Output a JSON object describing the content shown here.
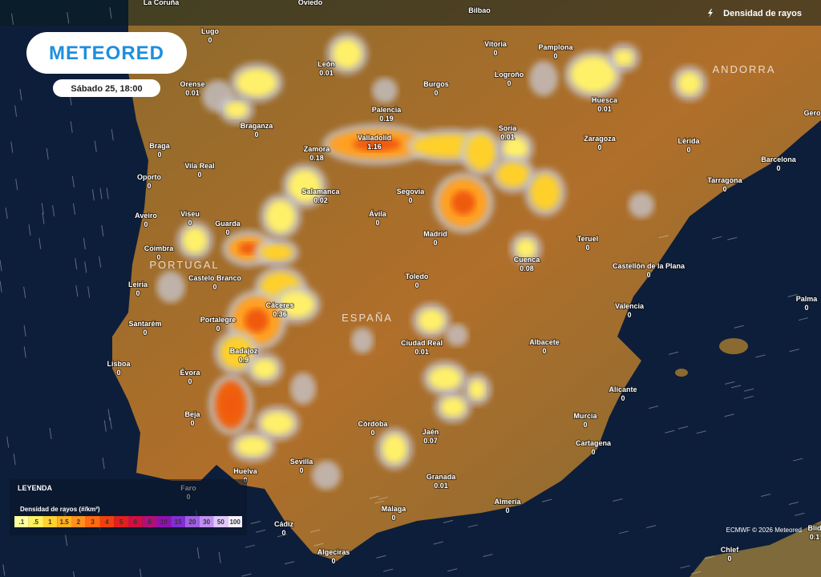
{
  "header": {
    "layer_title": "Densidad de rayos"
  },
  "logo": {
    "text": "METEORED"
  },
  "date": "Sábado 25, 18:00",
  "regions": [
    "PORTUGAL",
    "ESPAÑA",
    "ANDORRA"
  ],
  "cities": [
    {
      "name": "La Coruña"
    },
    {
      "name": "Oviedo"
    },
    {
      "name": "Bilbao"
    },
    {
      "name": "Lugo",
      "value": 0
    },
    {
      "name": "León",
      "value": 0.01
    },
    {
      "name": "Vitoria",
      "value": 0
    },
    {
      "name": "Pamplona",
      "value": 0
    },
    {
      "name": "Orense",
      "value": 0.01
    },
    {
      "name": "Burgos",
      "value": 0
    },
    {
      "name": "Logroño",
      "value": 0
    },
    {
      "name": "Huesca",
      "value": 0.01
    },
    {
      "name": "Braganza",
      "value": 0
    },
    {
      "name": "Palencia",
      "value": 0.19
    },
    {
      "name": "Soria",
      "value": 0.01
    },
    {
      "name": "Braga",
      "value": 0
    },
    {
      "name": "Valladolid",
      "value": 1.16
    },
    {
      "name": "Zaragoza",
      "value": 0
    },
    {
      "name": "Lérida",
      "value": 0
    },
    {
      "name": "Zamora",
      "value": 0.18
    },
    {
      "name": "Vila Real",
      "value": 0
    },
    {
      "name": "Barcelona",
      "value": 0
    },
    {
      "name": "Oporto",
      "value": 0
    },
    {
      "name": "Tarragona",
      "value": 0
    },
    {
      "name": "Salamanca",
      "value": 0.02
    },
    {
      "name": "Segovia",
      "value": 0
    },
    {
      "name": "Aveiro",
      "value": 0
    },
    {
      "name": "Viseu",
      "value": 0
    },
    {
      "name": "Ávila",
      "value": 0
    },
    {
      "name": "Guarda",
      "value": 0
    },
    {
      "name": "Madrid",
      "value": 0
    },
    {
      "name": "Teruel",
      "value": 0
    },
    {
      "name": "Coimbra",
      "value": 0
    },
    {
      "name": "Cuenca",
      "value": 0.08
    },
    {
      "name": "Castellón de la Plana",
      "value": 0
    },
    {
      "name": "Leiria",
      "value": 0
    },
    {
      "name": "Castelo Branco",
      "value": 0
    },
    {
      "name": "Toledo",
      "value": 0
    },
    {
      "name": "Cáceres",
      "value": 0.36
    },
    {
      "name": "Valencia",
      "value": 0
    },
    {
      "name": "Palma",
      "value": 0
    },
    {
      "name": "Portalegre",
      "value": 0
    },
    {
      "name": "Santarém",
      "value": 0
    },
    {
      "name": "Ciudad Real",
      "value": 0.01
    },
    {
      "name": "Albacete",
      "value": 0
    },
    {
      "name": "Badajoz",
      "value": 0.9
    },
    {
      "name": "Lisboa",
      "value": 0
    },
    {
      "name": "Évora",
      "value": 0
    },
    {
      "name": "Alicante",
      "value": 0
    },
    {
      "name": "Beja",
      "value": 0
    },
    {
      "name": "Murcia",
      "value": 0
    },
    {
      "name": "Córdoba",
      "value": 0
    },
    {
      "name": "Jaén",
      "value": 0.07
    },
    {
      "name": "Cartagena",
      "value": 0
    },
    {
      "name": "Sevilla",
      "value": 0
    },
    {
      "name": "Huelva",
      "value": 0
    },
    {
      "name": "Granada",
      "value": 0.01
    },
    {
      "name": "Faro",
      "value": 0
    },
    {
      "name": "Almería",
      "value": 0
    },
    {
      "name": "Málaga",
      "value": 0
    },
    {
      "name": "Cádiz",
      "value": 0
    },
    {
      "name": "Algeciras",
      "value": 0
    },
    {
      "name": "Chlef",
      "value": 0
    },
    {
      "name": "Gero"
    },
    {
      "name": "Blid",
      "value": 0.1
    }
  ],
  "legend": {
    "title": "LEYENDA",
    "subtitle": "Densidad de rayos (#/km²)",
    "labels": [
      ".1",
      ".5",
      "1",
      "1.5",
      "2",
      "3",
      "4",
      "5",
      "6",
      "8",
      "10",
      "15",
      "20",
      "30",
      "50",
      "100"
    ]
  },
  "credit": "ECMWF © 2026 Meteored"
}
